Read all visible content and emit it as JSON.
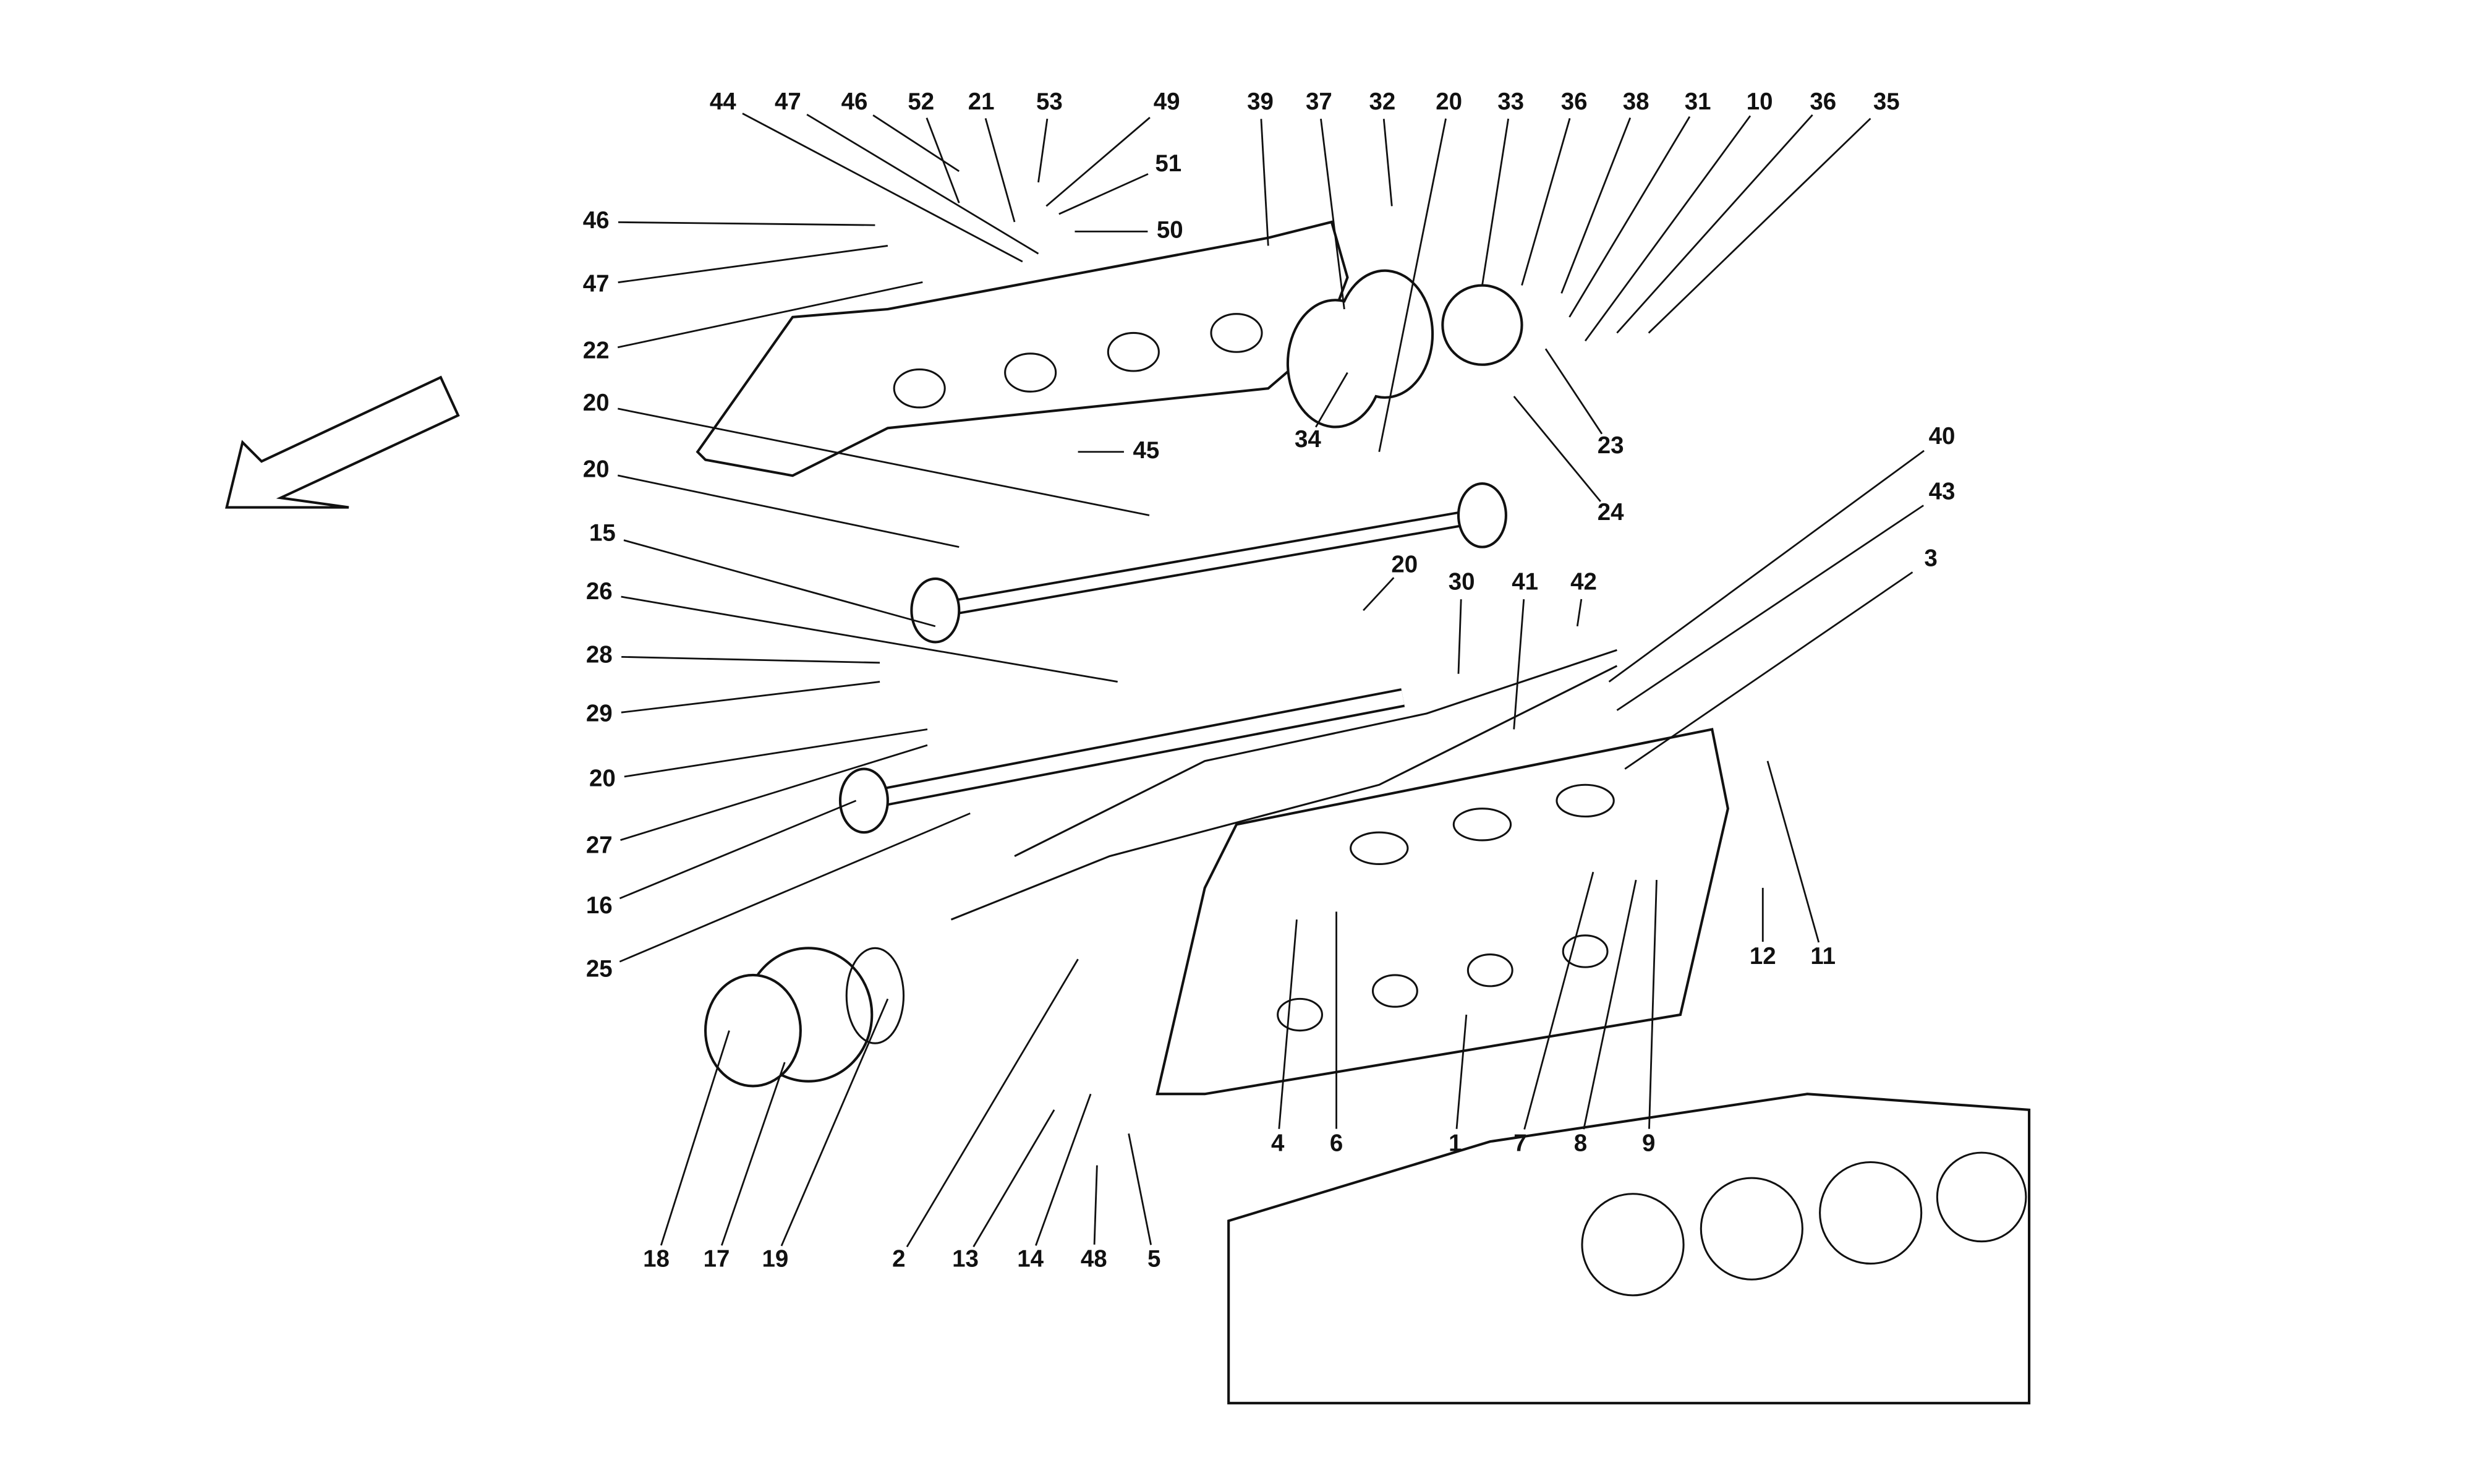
{
  "labels": [
    "44",
    "47",
    "46",
    "52",
    "21",
    "53",
    "49",
    "51",
    "50",
    "39",
    "37",
    "32",
    "20",
    "33",
    "36",
    "38",
    "31",
    "10",
    "36",
    "35",
    "46",
    "47",
    "22",
    "20",
    "20",
    "15",
    "26",
    "28",
    "29",
    "20",
    "27",
    "16",
    "25",
    "45",
    "34",
    "23",
    "24",
    "40",
    "43",
    "3",
    "20",
    "30",
    "41",
    "42",
    "12",
    "11",
    "4",
    "6",
    "1",
    "7",
    "8",
    "9",
    "18",
    "17",
    "19",
    "2",
    "13",
    "14",
    "48",
    "5"
  ]
}
